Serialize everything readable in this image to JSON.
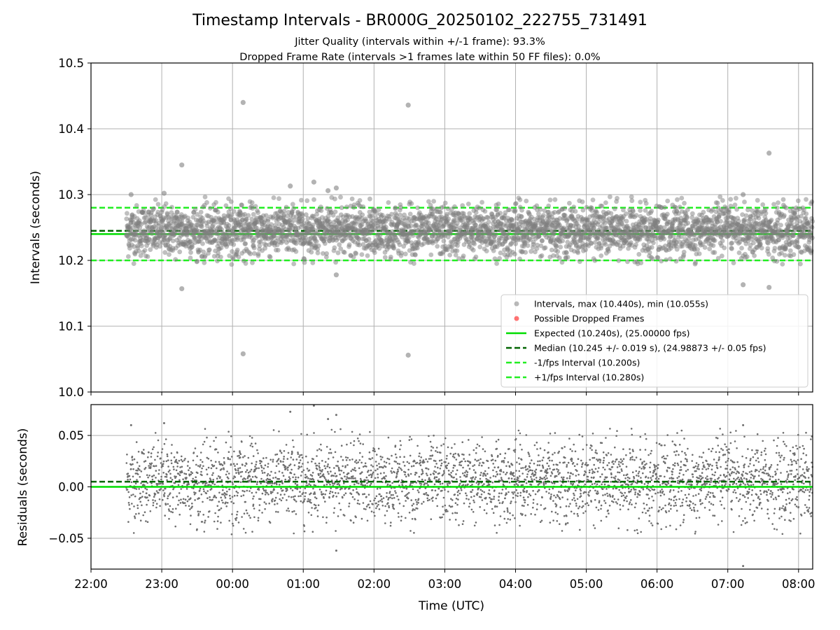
{
  "colors": {
    "points": "#808080",
    "dropped": "#ff0000",
    "expected": "#00dd00",
    "median": "#006400",
    "interval": "#22ee22",
    "grid": "#b0b0b0",
    "axes": "#000000"
  },
  "chart_data": [
    {
      "type": "scatter",
      "title": "Timestamp Intervals - BR000G_20250102_222755_731491",
      "subtitle_lines": [
        "Jitter Quality (intervals within +/-1 frame): 93.3%",
        "Dropped Frame Rate (intervals >1 frames late within 50 FF files): 0.0%"
      ],
      "xlabel": "",
      "ylabel": "Intervals (seconds)",
      "xlim": [
        "22:00",
        "08:12"
      ],
      "ylim": [
        10.0,
        10.5
      ],
      "yticks": [
        "10.0",
        "10.1",
        "10.2",
        "10.3",
        "10.4",
        "10.5"
      ],
      "grid": true,
      "legend_position": "lower-right",
      "legend": [
        "Intervals, max (10.440s), min (10.055s)",
        "Possible Dropped Frames",
        "Expected (10.240s), (25.00000 fps)",
        "Median (10.245 +/- 0.019 s), (24.98873 +/- 0.05 fps)",
        "-1/fps Interval (10.200s)",
        "+1/fps Interval (10.280s)"
      ],
      "reference_lines": {
        "expected": 10.24,
        "median": 10.245,
        "minus_interval": 10.2,
        "plus_interval": 10.28
      },
      "series_summary": {
        "time_start": "22:30",
        "time_end": "08:12",
        "max": 10.44,
        "min": 10.055,
        "median": 10.245,
        "std": 0.019,
        "dropped_frame_count": 0
      },
      "outliers": [
        {
          "x": "22:34",
          "y": 10.3
        },
        {
          "x": "23:02",
          "y": 10.302
        },
        {
          "x": "23:17",
          "y": 10.345
        },
        {
          "x": "23:17",
          "y": 10.157
        },
        {
          "x": "00:09",
          "y": 10.44
        },
        {
          "x": "00:09",
          "y": 10.058
        },
        {
          "x": "00:49",
          "y": 10.313
        },
        {
          "x": "01:09",
          "y": 10.319
        },
        {
          "x": "01:21",
          "y": 10.306
        },
        {
          "x": "01:28",
          "y": 10.31
        },
        {
          "x": "01:28",
          "y": 10.178
        },
        {
          "x": "02:29",
          "y": 10.436
        },
        {
          "x": "02:29",
          "y": 10.056
        },
        {
          "x": "07:13",
          "y": 10.3
        },
        {
          "x": "07:13",
          "y": 10.163
        },
        {
          "x": "07:35",
          "y": 10.363
        },
        {
          "x": "07:35",
          "y": 10.159
        }
      ]
    },
    {
      "type": "scatter",
      "title": "",
      "xlabel": "Time (UTC)",
      "ylabel": "Residuals (seconds)",
      "xlim": [
        "22:00",
        "08:12"
      ],
      "ylim": [
        -0.08,
        0.08
      ],
      "xticks": [
        "22:00",
        "23:00",
        "00:00",
        "01:00",
        "02:00",
        "03:00",
        "04:00",
        "05:00",
        "06:00",
        "07:00",
        "08:00"
      ],
      "yticks": [
        "−0.05",
        "0.00",
        "0.05"
      ],
      "grid": true,
      "reference_lines": {
        "expected": 0.0,
        "median": 0.005
      },
      "series_summary": {
        "time_start": "22:30",
        "time_end": "08:12",
        "std": 0.019
      }
    }
  ]
}
